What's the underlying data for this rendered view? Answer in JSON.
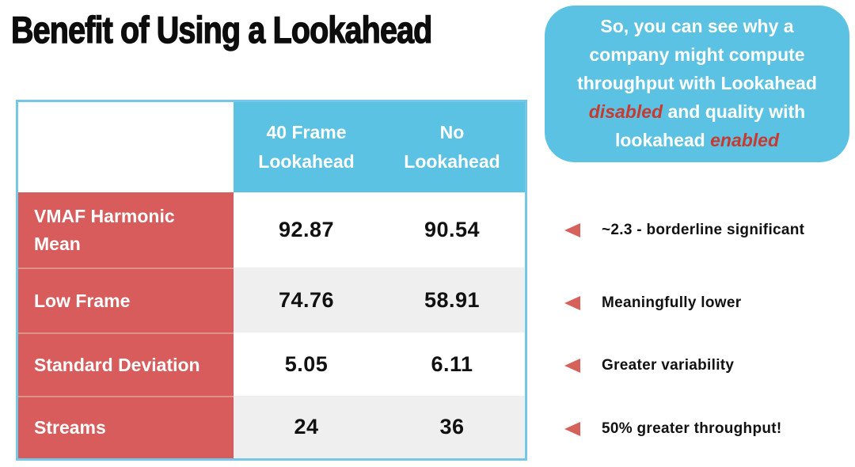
{
  "slide": {
    "title": "Benefit of Using a Lookahead"
  },
  "callout": {
    "seg1": "So, you can see why a company might compute throughput with Lookahead ",
    "highlight_1": "disabled",
    "seg2": " and quality with lookahead ",
    "highlight_2": "enabled"
  },
  "table": {
    "columns": [
      "",
      "40 Frame Lookahead",
      "No Lookahead"
    ],
    "rows": [
      {
        "label": "VMAF Harmonic Mean",
        "values": [
          "92.87",
          "90.54"
        ]
      },
      {
        "label": "Low Frame",
        "values": [
          "74.76",
          "58.91"
        ]
      },
      {
        "label": "Standard Deviation",
        "values": [
          "5.05",
          "6.11"
        ]
      },
      {
        "label": "Streams",
        "values": [
          "24",
          "36"
        ]
      }
    ]
  },
  "annotations": [
    {
      "icon": "triangle-left-icon",
      "text": "~2.3 - borderline significant"
    },
    {
      "icon": "triangle-left-icon",
      "text": "Meaningfully lower"
    },
    {
      "icon": "triangle-left-icon",
      "text": "Greater variability"
    },
    {
      "icon": "triangle-left-icon",
      "text": "50% greater throughput!"
    }
  ],
  "colors": {
    "accent_blue": "#5bc2e4",
    "table_border_blue": "#74c8e6",
    "accent_red": "#d85c5c",
    "triangle_red": "#d6615a",
    "highlight_red": "#c83a30",
    "row_alt_gray": "#efefef"
  }
}
